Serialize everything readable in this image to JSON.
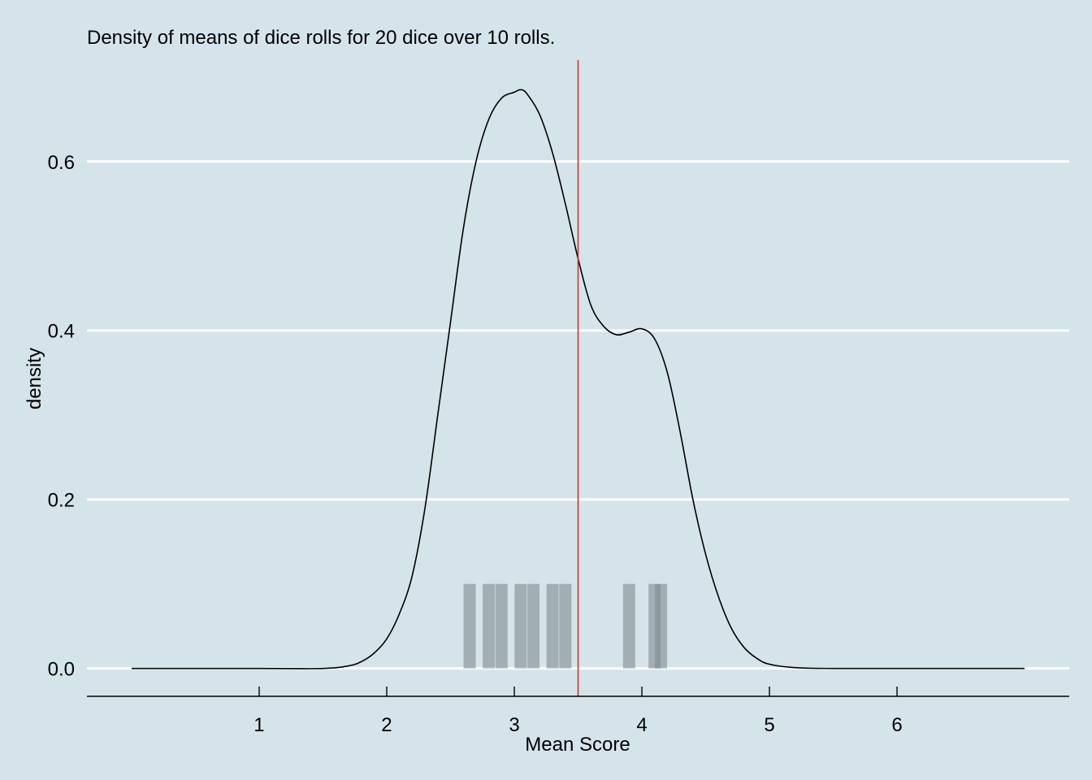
{
  "chart_data": {
    "type": "density",
    "title": "Density of means of dice rolls for 20 dice over 10 rolls.",
    "xlabel": "Mean Score",
    "ylabel": "density",
    "xlim": [
      -0.35,
      7.35
    ],
    "ylim": [
      -0.033,
      0.72
    ],
    "x_ticks": [
      1,
      2,
      3,
      4,
      5,
      6
    ],
    "x_tick_labels": [
      "1",
      "2",
      "3",
      "4",
      "5",
      "6"
    ],
    "y_ticks": [
      0.0,
      0.2,
      0.4,
      0.6
    ],
    "y_tick_labels": [
      "0.0",
      "0.2",
      "0.4",
      "0.6"
    ],
    "grid": "horizontal major lines",
    "reference_line": {
      "x": 3.5,
      "color": "#c0392b"
    },
    "curve_color": "#000000",
    "rug_color": "#7f8a8f",
    "curve": {
      "x": [
        0.0,
        1.0,
        1.5,
        1.7,
        1.8,
        1.9,
        2.0,
        2.1,
        2.2,
        2.3,
        2.4,
        2.5,
        2.6,
        2.7,
        2.8,
        2.9,
        3.0,
        3.05,
        3.1,
        3.2,
        3.3,
        3.4,
        3.5,
        3.6,
        3.7,
        3.8,
        3.9,
        4.0,
        4.1,
        4.2,
        4.3,
        4.4,
        4.5,
        4.6,
        4.7,
        4.8,
        4.9,
        5.0,
        5.2,
        5.5,
        6.0,
        7.0
      ],
      "y": [
        0.0,
        0.0,
        0.0,
        0.003,
        0.008,
        0.018,
        0.035,
        0.065,
        0.11,
        0.19,
        0.3,
        0.41,
        0.52,
        0.6,
        0.65,
        0.675,
        0.682,
        0.685,
        0.68,
        0.655,
        0.61,
        0.55,
        0.485,
        0.43,
        0.405,
        0.395,
        0.398,
        0.402,
        0.39,
        0.35,
        0.28,
        0.2,
        0.135,
        0.085,
        0.048,
        0.025,
        0.012,
        0.005,
        0.001,
        0.0,
        0.0,
        0.0
      ]
    },
    "rug": {
      "x": [
        2.65,
        2.8,
        2.9,
        3.05,
        3.15,
        3.3,
        3.4,
        3.9,
        4.1,
        4.15
      ],
      "height": 0.1
    }
  }
}
